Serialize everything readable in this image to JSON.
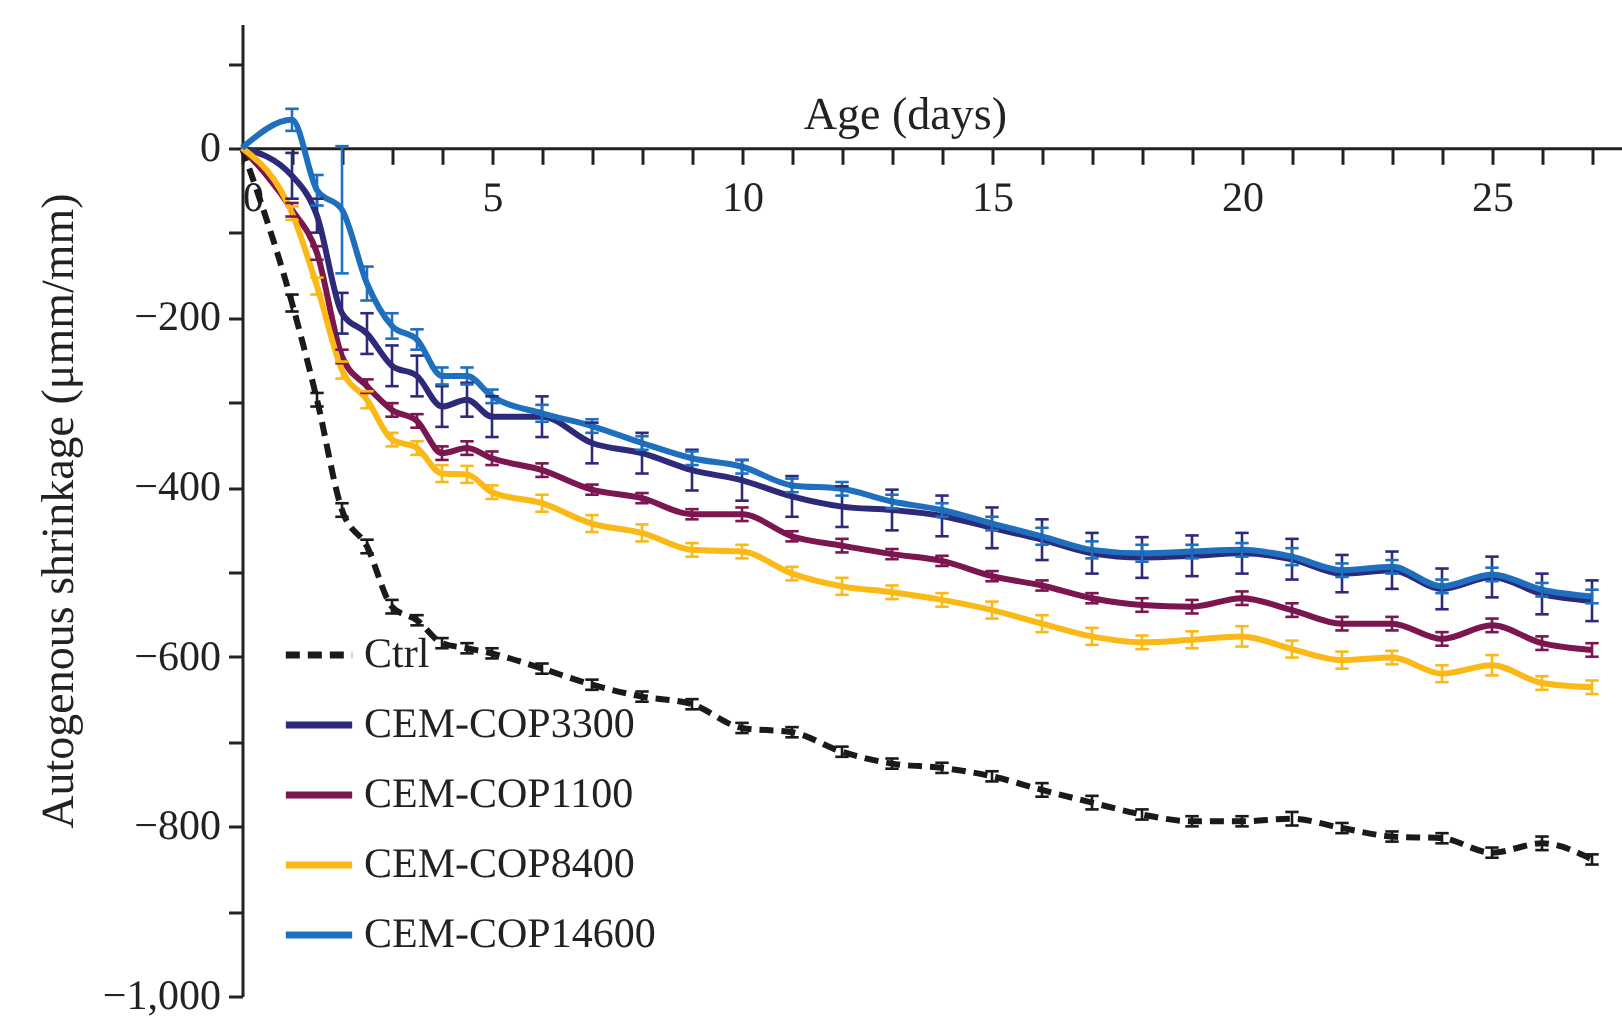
{
  "chart_data": {
    "type": "line",
    "xlabel": "Age (days)",
    "ylabel": "Autogenous shrinkage (μmm/mm)",
    "x": [
      0,
      1,
      1.5,
      2,
      2.5,
      3,
      3.5,
      4,
      4.5,
      5,
      6,
      7,
      8,
      9,
      10,
      11,
      12,
      13,
      14,
      15,
      16,
      17,
      18,
      19,
      20,
      21,
      22,
      23,
      24,
      25,
      26,
      27
    ],
    "series": [
      {
        "name": "Ctrl",
        "color": "#1a1a1a",
        "line_style": "dashed",
        "values": [
          0,
          -183,
          -297,
          -427,
          -470,
          -541,
          -557,
          -584,
          -590,
          -596,
          -614,
          -633,
          -647,
          -656,
          -684,
          -689,
          -712,
          -726,
          -731,
          -741,
          -757,
          -772,
          -786,
          -794,
          -794,
          -791,
          -802,
          -812,
          -814,
          -831,
          -820,
          -839
        ],
        "errors": [
          null,
          10,
          8,
          8,
          8,
          8,
          6,
          6,
          6,
          6,
          6,
          6,
          6,
          6,
          6,
          6,
          6,
          6,
          6,
          6,
          8,
          8,
          6,
          6,
          6,
          8,
          6,
          6,
          6,
          6,
          8,
          6
        ]
      },
      {
        "name": "CEM-COP3300",
        "color": "#2e2a7a",
        "line_style": "solid",
        "values": [
          0,
          -33,
          -80,
          -195,
          -219,
          -257,
          -269,
          -305,
          -297,
          -317,
          -317,
          -348,
          -360,
          -380,
          -392,
          -411,
          -423,
          -427,
          -434,
          -448,
          -462,
          -478,
          -483,
          -481,
          -478,
          -485,
          -502,
          -498,
          -520,
          -506,
          -526,
          -534
        ],
        "errors": [
          null,
          27,
          20,
          24,
          24,
          24,
          24,
          24,
          20,
          24,
          24,
          24,
          24,
          24,
          24,
          24,
          24,
          24,
          24,
          24,
          24,
          24,
          24,
          24,
          24,
          24,
          22,
          22,
          24,
          24,
          24,
          24
        ]
      },
      {
        "name": "CEM-COP1100",
        "color": "#7b1650",
        "line_style": "solid",
        "values": [
          0,
          -73,
          -124,
          -246,
          -281,
          -309,
          -322,
          -360,
          -354,
          -366,
          -380,
          -403,
          -413,
          -432,
          -432,
          -458,
          -469,
          -479,
          -487,
          -505,
          -516,
          -531,
          -539,
          -541,
          -531,
          -545,
          -561,
          -561,
          -579,
          -563,
          -584,
          -592
        ],
        "errors": [
          null,
          8,
          8,
          8,
          8,
          8,
          8,
          8,
          8,
          8,
          8,
          6,
          6,
          6,
          8,
          6,
          8,
          6,
          6,
          6,
          6,
          6,
          8,
          8,
          8,
          8,
          8,
          8,
          8,
          8,
          8,
          8
        ]
      },
      {
        "name": "CEM-COP8400",
        "color": "#fbb917",
        "line_style": "solid",
        "values": [
          0,
          -77,
          -163,
          -262,
          -297,
          -344,
          -354,
          -384,
          -385,
          -406,
          -419,
          -443,
          -454,
          -474,
          -476,
          -502,
          -517,
          -524,
          -533,
          -545,
          -561,
          -576,
          -583,
          -580,
          -576,
          -591,
          -604,
          -601,
          -620,
          -610,
          -631,
          -636
        ],
        "errors": [
          null,
          8,
          10,
          10,
          10,
          8,
          8,
          10,
          10,
          8,
          10,
          10,
          10,
          8,
          8,
          8,
          10,
          8,
          8,
          10,
          10,
          10,
          8,
          10,
          12,
          10,
          10,
          8,
          10,
          12,
          8,
          8
        ]
      },
      {
        "name": "CEM-COP14600",
        "color": "#1f6fbf",
        "line_style": "solid",
        "values": [
          0,
          33,
          -50,
          -73,
          -160,
          -210,
          -226,
          -269,
          -269,
          -293,
          -313,
          -328,
          -348,
          -366,
          -376,
          -398,
          -402,
          -417,
          -427,
          -443,
          -458,
          -474,
          -478,
          -476,
          -474,
          -482,
          -498,
          -494,
          -517,
          -503,
          -521,
          -529
        ],
        "errors": [
          null,
          13,
          18,
          75,
          20,
          15,
          12,
          10,
          10,
          8,
          10,
          8,
          8,
          8,
          8,
          8,
          8,
          8,
          8,
          8,
          10,
          10,
          10,
          8,
          8,
          10,
          8,
          8,
          8,
          8,
          8,
          8
        ]
      }
    ],
    "xlim": [
      0,
      27.6
    ],
    "xticks": [
      0,
      {
        "value": 1,
        "label": null
      },
      {
        "value": 2,
        "label": null
      },
      {
        "value": 3,
        "label": null
      },
      {
        "value": 4,
        "label": null
      },
      5,
      {
        "value": 6,
        "label": null
      },
      {
        "value": 7,
        "label": null
      },
      {
        "value": 8,
        "label": null
      },
      {
        "value": 9,
        "label": null
      },
      10,
      {
        "value": 11,
        "label": null
      },
      {
        "value": 12,
        "label": null
      },
      {
        "value": 13,
        "label": null
      },
      {
        "value": 14,
        "label": null
      },
      15,
      {
        "value": 16,
        "label": null
      },
      {
        "value": 17,
        "label": null
      },
      {
        "value": 18,
        "label": null
      },
      {
        "value": 19,
        "label": null
      },
      20,
      {
        "value": 21,
        "label": null
      },
      {
        "value": 22,
        "label": null
      },
      {
        "value": 23,
        "label": null
      },
      {
        "value": 24,
        "label": null
      },
      25,
      {
        "value": 26,
        "label": null
      },
      {
        "value": 27,
        "label": null
      }
    ],
    "ylim": [
      -1000,
      146
    ],
    "yticks": [
      {
        "value": 100,
        "label": null
      },
      0,
      {
        "value": -100,
        "label": null
      },
      {
        "value": -200,
        "label": "−200"
      },
      {
        "value": -300,
        "label": null
      },
      {
        "value": -400,
        "label": "−400"
      },
      {
        "value": -500,
        "label": null
      },
      {
        "value": -600,
        "label": "−600"
      },
      {
        "value": -700,
        "label": null
      },
      {
        "value": -800,
        "label": "−800"
      },
      {
        "value": -900,
        "label": null
      },
      {
        "value": -1000,
        "label": "−1,000"
      }
    ],
    "grid": false,
    "legend": "bottom left",
    "marker": "none"
  }
}
